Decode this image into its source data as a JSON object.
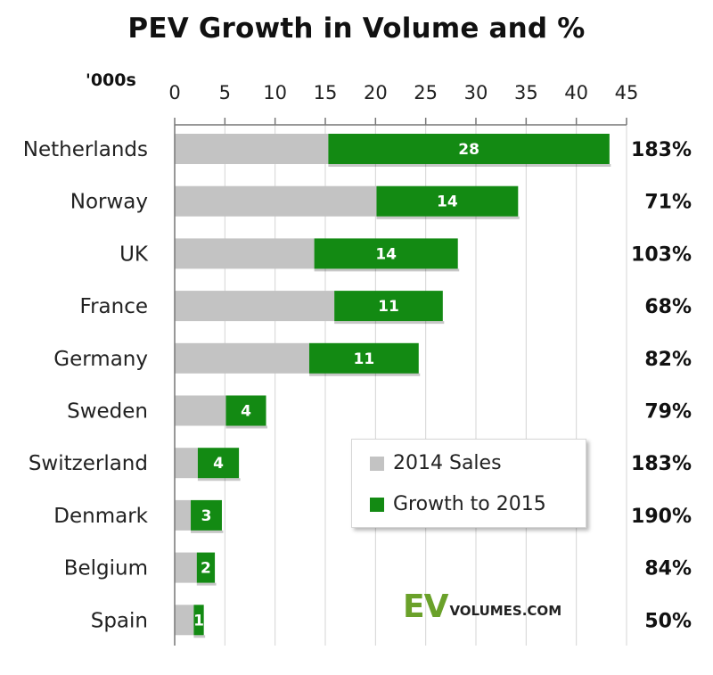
{
  "chart_data": {
    "type": "bar",
    "orientation": "horizontal",
    "stacked": true,
    "title": "PEV Growth in Volume and %",
    "unit_label": "'000s",
    "xlim": [
      0,
      45
    ],
    "xticks": [
      "0",
      "5",
      "10",
      "15",
      "20",
      "25",
      "30",
      "35",
      "40",
      "45"
    ],
    "tick_values": [
      0,
      5,
      10,
      15,
      20,
      25,
      30,
      35,
      40,
      45
    ],
    "categories": [
      "Netherlands",
      "Norway",
      "UK",
      "France",
      "Germany",
      "Sweden",
      "Switzerland",
      "Denmark",
      "Belgium",
      "Spain"
    ],
    "series": [
      {
        "name": "2014 Sales",
        "color": "#c3c3c3",
        "values": [
          15.3,
          20.1,
          13.9,
          15.9,
          13.4,
          5.1,
          2.3,
          1.6,
          2.2,
          1.9
        ]
      },
      {
        "name": "Growth to 2015",
        "color": "#138a13",
        "values": [
          28,
          14.1,
          14.3,
          10.8,
          10.9,
          4.0,
          4.1,
          3.1,
          1.8,
          1.0
        ]
      }
    ],
    "bar_labels": [
      "28",
      "14",
      "14",
      "11",
      "11",
      "4",
      "4",
      "3",
      "2",
      "1"
    ],
    "growth_pct": [
      "183%",
      "71%",
      "103%",
      "68%",
      "82%",
      "79%",
      "183%",
      "190%",
      "84%",
      "50%"
    ],
    "legend_position": "bottom-center",
    "grid": true
  },
  "legend": {
    "items": [
      "2014 Sales",
      "Growth to 2015"
    ]
  },
  "logo": {
    "ev": "EV",
    "rest": "VOLUMES.COM"
  }
}
